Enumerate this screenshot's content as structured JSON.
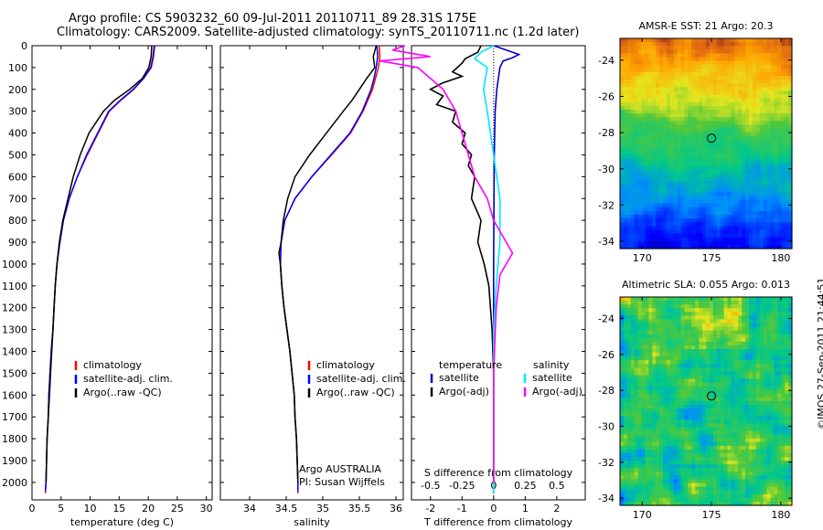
{
  "header": {
    "title_line1": "Argo profile: CS 5903232_60 09-Jul-2011 20110711_89 28.31S 175E",
    "title_line2": "Climatology: CARS2009. Satellite-adjusted climatology: synTS_20110711.nc (1.2d later)"
  },
  "colors": {
    "climatology": "#ff0000",
    "satellite_adj": "#0000ff",
    "argo": "#000000",
    "sat_diff_temp": "#0000cc",
    "sat_diff_sal": "#00e5ff",
    "argo_diff_sal": "#ff00ff"
  },
  "chart_data": [
    {
      "id": "temperature",
      "type": "line",
      "xlabel": "temperature (deg C)",
      "ylabel": "",
      "xlim": [
        0,
        31
      ],
      "ylim": [
        2080,
        0
      ],
      "xticks": [
        0,
        5,
        10,
        15,
        20,
        25,
        30
      ],
      "yticks": [
        0,
        100,
        200,
        300,
        400,
        500,
        600,
        700,
        800,
        900,
        1000,
        1100,
        1200,
        1300,
        1400,
        1500,
        1600,
        1700,
        1800,
        1900,
        2000
      ],
      "legend": [
        "climatology",
        "satellite-adj. clim.",
        "Argo(..raw -QC)"
      ],
      "series": [
        {
          "name": "climatology",
          "key": "climatology",
          "points": [
            [
              21,
              0
            ],
            [
              20.8,
              50
            ],
            [
              20.4,
              100
            ],
            [
              19.2,
              150
            ],
            [
              17.5,
              200
            ],
            [
              15.3,
              250
            ],
            [
              13.3,
              300
            ],
            [
              11.4,
              400
            ],
            [
              9.5,
              500
            ],
            [
              7.8,
              600
            ],
            [
              6.4,
              700
            ],
            [
              5.4,
              800
            ],
            [
              4.8,
              900
            ],
            [
              4.3,
              1000
            ],
            [
              4.0,
              1100
            ],
            [
              3.8,
              1200
            ],
            [
              3.6,
              1300
            ],
            [
              3.3,
              1400
            ],
            [
              3.1,
              1500
            ],
            [
              2.9,
              1600
            ],
            [
              2.8,
              1700
            ],
            [
              2.6,
              1800
            ],
            [
              2.5,
              1900
            ],
            [
              2.4,
              2000
            ],
            [
              2.3,
              2050
            ]
          ]
        },
        {
          "name": "satellite-adj. clim.",
          "key": "satellite_adj",
          "points": [
            [
              21.1,
              0
            ],
            [
              20.9,
              50
            ],
            [
              20.5,
              100
            ],
            [
              19.2,
              150
            ],
            [
              17.4,
              200
            ],
            [
              15.2,
              250
            ],
            [
              13.2,
              300
            ],
            [
              11.3,
              400
            ],
            [
              9.4,
              500
            ],
            [
              7.8,
              600
            ],
            [
              6.4,
              700
            ],
            [
              5.4,
              800
            ],
            [
              4.8,
              900
            ],
            [
              4.3,
              1000
            ],
            [
              4.0,
              1100
            ],
            [
              3.8,
              1200
            ],
            [
              3.6,
              1300
            ],
            [
              3.3,
              1400
            ],
            [
              3.1,
              1500
            ],
            [
              2.9,
              1600
            ],
            [
              2.8,
              1700
            ],
            [
              2.6,
              1800
            ],
            [
              2.5,
              1900
            ],
            [
              2.4,
              2000
            ],
            [
              2.3,
              2040
            ]
          ]
        },
        {
          "name": "Argo(..raw -QC)",
          "key": "argo",
          "points": [
            [
              20.6,
              0
            ],
            [
              20.5,
              50
            ],
            [
              20.1,
              100
            ],
            [
              19.0,
              150
            ],
            [
              16.8,
              200
            ],
            [
              14.2,
              250
            ],
            [
              12.3,
              300
            ],
            [
              9.8,
              400
            ],
            [
              8.3,
              500
            ],
            [
              7.1,
              600
            ],
            [
              6.2,
              700
            ],
            [
              5.3,
              800
            ],
            [
              4.7,
              900
            ],
            [
              4.3,
              1000
            ],
            [
              4.0,
              1100
            ],
            [
              3.8,
              1200
            ],
            [
              3.6,
              1300
            ],
            [
              3.4,
              1400
            ],
            [
              3.2,
              1500
            ],
            [
              3.0,
              1600
            ],
            [
              2.8,
              1700
            ],
            [
              2.6,
              1800
            ],
            [
              2.5,
              1900
            ],
            [
              2.4,
              2000
            ]
          ]
        }
      ]
    },
    {
      "id": "salinity",
      "type": "line",
      "xlabel": "salinity",
      "ylabel": "",
      "xlim": [
        33.6,
        36.1
      ],
      "ylim": [
        2080,
        0
      ],
      "xticks": [
        34,
        34.5,
        35,
        35.5,
        36
      ],
      "legend": [
        "climatology",
        "satellite-adj. clim.",
        "Argo(..raw -QC)"
      ],
      "annotation_line1": "Argo AUSTRALIA",
      "annotation_line2": "PI: Susan Wijffels",
      "series": [
        {
          "name": "climatology",
          "key": "climatology",
          "points": [
            [
              35.77,
              0
            ],
            [
              35.78,
              50
            ],
            [
              35.76,
              100
            ],
            [
              35.72,
              150
            ],
            [
              35.68,
              200
            ],
            [
              35.55,
              300
            ],
            [
              35.38,
              400
            ],
            [
              35.12,
              500
            ],
            [
              34.85,
              600
            ],
            [
              34.62,
              700
            ],
            [
              34.48,
              800
            ],
            [
              34.43,
              900
            ],
            [
              34.42,
              1000
            ],
            [
              34.44,
              1100
            ],
            [
              34.47,
              1200
            ],
            [
              34.51,
              1300
            ],
            [
              34.55,
              1400
            ],
            [
              34.58,
              1500
            ],
            [
              34.61,
              1600
            ],
            [
              34.62,
              1700
            ],
            [
              34.64,
              1800
            ],
            [
              34.65,
              1900
            ],
            [
              34.66,
              2000
            ],
            [
              34.66,
              2050
            ]
          ]
        },
        {
          "name": "satellite-adj. clim.",
          "key": "satellite_adj",
          "points": [
            [
              35.74,
              0
            ],
            [
              35.75,
              50
            ],
            [
              35.73,
              100
            ],
            [
              35.7,
              150
            ],
            [
              35.66,
              200
            ],
            [
              35.54,
              300
            ],
            [
              35.37,
              400
            ],
            [
              35.11,
              500
            ],
            [
              34.85,
              600
            ],
            [
              34.62,
              700
            ],
            [
              34.48,
              800
            ],
            [
              34.43,
              900
            ],
            [
              34.42,
              1000
            ],
            [
              34.44,
              1100
            ],
            [
              34.47,
              1200
            ],
            [
              34.51,
              1300
            ],
            [
              34.55,
              1400
            ],
            [
              34.58,
              1500
            ],
            [
              34.61,
              1600
            ],
            [
              34.62,
              1700
            ],
            [
              34.64,
              1800
            ],
            [
              34.65,
              1900
            ],
            [
              34.66,
              2000
            ],
            [
              34.66,
              2040
            ]
          ]
        },
        {
          "name": "Argo(..raw -QC)",
          "key": "argo",
          "points": [
            [
              35.73,
              0
            ],
            [
              35.69,
              50
            ],
            [
              35.71,
              100
            ],
            [
              35.6,
              150
            ],
            [
              35.5,
              200
            ],
            [
              35.4,
              250
            ],
            [
              35.28,
              300
            ],
            [
              35.05,
              400
            ],
            [
              34.82,
              500
            ],
            [
              34.62,
              600
            ],
            [
              34.52,
              700
            ],
            [
              34.46,
              800
            ],
            [
              34.43,
              900
            ],
            [
              34.4,
              950
            ],
            [
              34.42,
              1000
            ],
            [
              34.44,
              1100
            ],
            [
              34.47,
              1200
            ],
            [
              34.51,
              1300
            ],
            [
              34.55,
              1400
            ],
            [
              34.58,
              1500
            ],
            [
              34.61,
              1600
            ],
            [
              34.62,
              1700
            ],
            [
              34.64,
              1800
            ],
            [
              34.65,
              1900
            ],
            [
              34.66,
              2000
            ]
          ]
        }
      ]
    },
    {
      "id": "differences",
      "type": "line",
      "xlabel": "T difference from climatology",
      "top_label": "S difference from climatology",
      "xlim": [
        -2.6,
        2.9
      ],
      "ylim": [
        2080,
        0
      ],
      "xticks": [
        -2,
        -1,
        0,
        1,
        2
      ],
      "s_ticks": [
        "-0.5",
        "-0.25",
        "0",
        "0.25",
        "0.5"
      ],
      "legend_temperature_title": "temperature",
      "legend_salinity_title": "salinity",
      "legend_items": [
        "satellite",
        "Argo(-adj)",
        "satellite",
        "Argo(-adj)"
      ],
      "series": [
        {
          "name": "satellite",
          "group": "temperature",
          "key": "sat_diff_temp",
          "points": [
            [
              0.0,
              0
            ],
            [
              0.4,
              20
            ],
            [
              0.8,
              40
            ],
            [
              0.6,
              55
            ],
            [
              0.3,
              70
            ],
            [
              0.2,
              100
            ],
            [
              0.1,
              200
            ],
            [
              0.05,
              300
            ],
            [
              0.02,
              500
            ],
            [
              0.0,
              1000
            ],
            [
              0.0,
              2050
            ]
          ]
        },
        {
          "name": "Argo(-adj)",
          "group": "temperature",
          "key": "argo",
          "points": [
            [
              -0.4,
              0
            ],
            [
              -0.5,
              30
            ],
            [
              -0.9,
              60
            ],
            [
              -1.0,
              80
            ],
            [
              -1.3,
              120
            ],
            [
              -1.0,
              140
            ],
            [
              -1.6,
              170
            ],
            [
              -2.0,
              200
            ],
            [
              -1.6,
              230
            ],
            [
              -1.8,
              270
            ],
            [
              -1.2,
              300
            ],
            [
              -1.3,
              350
            ],
            [
              -0.9,
              400
            ],
            [
              -1.0,
              450
            ],
            [
              -0.7,
              500
            ],
            [
              -0.8,
              550
            ],
            [
              -0.6,
              600
            ],
            [
              -0.7,
              700
            ],
            [
              -0.4,
              800
            ],
            [
              -0.5,
              900
            ],
            [
              -0.3,
              1000
            ],
            [
              -0.15,
              1100
            ],
            [
              -0.05,
              1300
            ],
            [
              0.0,
              1500
            ],
            [
              0.0,
              2000
            ]
          ]
        },
        {
          "name": "satellite",
          "group": "salinity",
          "key": "sat_diff_sal",
          "points": [
            [
              0.0,
              0
            ],
            [
              -0.1,
              30
            ],
            [
              -0.15,
              60
            ],
            [
              -0.05,
              100
            ],
            [
              -0.08,
              200
            ],
            [
              -0.05,
              300
            ],
            [
              0.0,
              500
            ],
            [
              0.05,
              700
            ],
            [
              0.05,
              900
            ],
            [
              0.02,
              1100
            ],
            [
              0.0,
              1300
            ],
            [
              0.0,
              2050
            ]
          ]
        },
        {
          "name": "Argo(-adj)",
          "group": "salinity",
          "key": "argo_diff_sal",
          "points": [
            [
              -0.7,
              0
            ],
            [
              -0.8,
              20
            ],
            [
              -0.5,
              50
            ],
            [
              -0.9,
              70
            ],
            [
              -0.6,
              100
            ],
            [
              -0.4,
              200
            ],
            [
              -0.35,
              250
            ],
            [
              -0.3,
              300
            ],
            [
              -0.25,
              400
            ],
            [
              -0.2,
              500
            ],
            [
              -0.15,
              600
            ],
            [
              -0.05,
              700
            ],
            [
              0.0,
              800
            ],
            [
              0.05,
              850
            ],
            [
              0.1,
              900
            ],
            [
              0.15,
              950
            ],
            [
              0.1,
              1000
            ],
            [
              0.05,
              1050
            ],
            [
              0.02,
              1200
            ],
            [
              0.0,
              1500
            ],
            [
              0.0,
              2000
            ]
          ]
        }
      ]
    },
    {
      "id": "sst_map",
      "type": "heatmap",
      "title": "AMSR-E SST: 21 Argo: 20.3",
      "xlim": [
        168.4,
        180.8
      ],
      "ylim": [
        -34.4,
        -22.8
      ],
      "xticks": [
        170,
        175,
        180
      ],
      "yticks": [
        -24,
        -26,
        -28,
        -30,
        -32,
        -34
      ],
      "marker": {
        "lon": 175.0,
        "lat": -28.31
      }
    },
    {
      "id": "sla_map",
      "type": "heatmap",
      "title": "Altimetric SLA: 0.055 Argo: 0.013",
      "xlim": [
        168.4,
        180.8
      ],
      "ylim": [
        -34.4,
        -22.8
      ],
      "xticks": [
        170,
        175,
        180
      ],
      "yticks": [
        -24,
        -26,
        -28,
        -30,
        -32,
        -34
      ],
      "marker": {
        "lon": 175.0,
        "lat": -28.31
      }
    }
  ],
  "footer": {
    "credit": "©IMOS 27-Sep-2011 21:44:51"
  }
}
